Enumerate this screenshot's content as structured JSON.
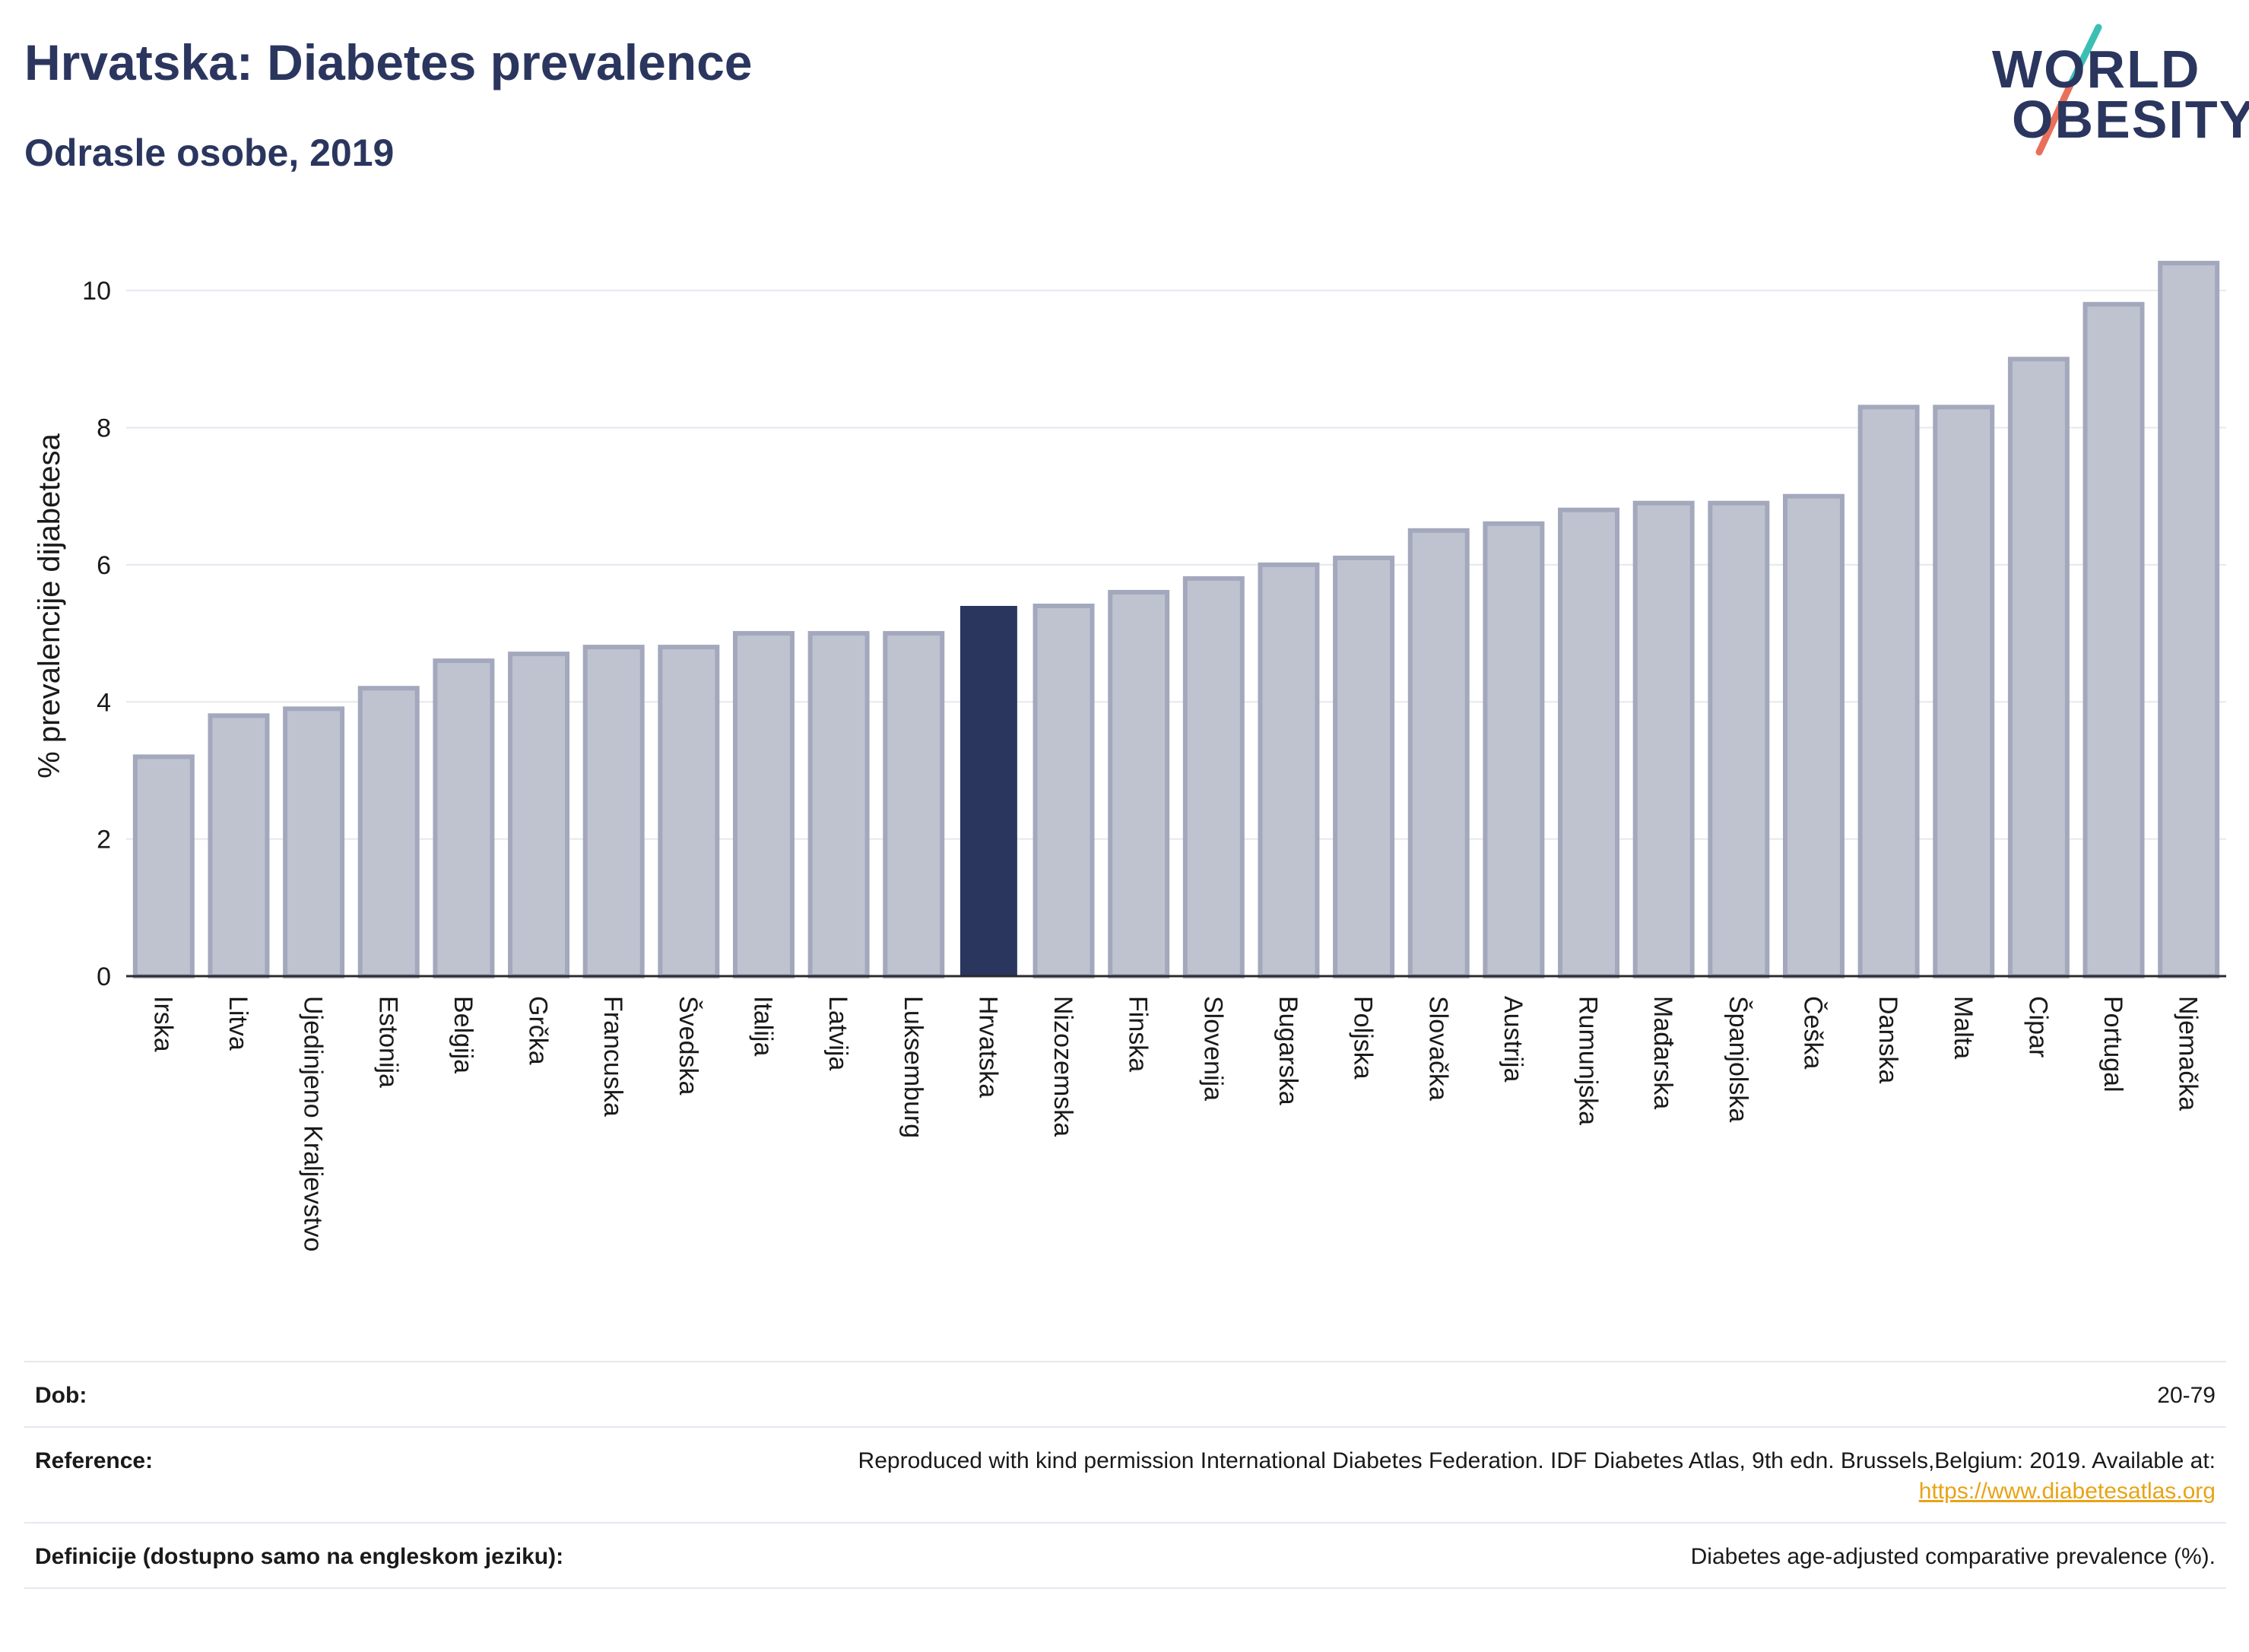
{
  "header": {
    "title": "Hrvatska: Diabetes prevalence",
    "subtitle": "Odrasle osobe, 2019"
  },
  "logo": {
    "line1": "WORLD",
    "line2": "OBESITY",
    "colors": {
      "text": "#2b365f",
      "slash_top": "#3bbfb4",
      "slash_bottom": "#e8705a"
    }
  },
  "chart_data": {
    "type": "bar",
    "title": "Hrvatska: Diabetes prevalence",
    "subtitle": "Odrasle osobe, 2019",
    "ylabel": "% prevalencije dijabetesa",
    "xlabel": "",
    "ylim": [
      0,
      10.8
    ],
    "yticks": [
      0,
      2,
      4,
      6,
      8,
      10
    ],
    "grid": true,
    "highlight": "Hrvatska",
    "colors": {
      "bar": "#bfc3d0",
      "bar_edge": "#a3a8bd",
      "highlight": "#2b365f",
      "grid": "#e6e8ef"
    },
    "categories": [
      "Irska",
      "Litva",
      "Ujedinjeno Kraljevstvo",
      "Estonija",
      "Belgija",
      "Grčka",
      "Francuska",
      "Švedska",
      "Italija",
      "Latvija",
      "Luksemburg",
      "Hrvatska",
      "Nizozemska",
      "Finska",
      "Slovenija",
      "Bugarska",
      "Poljska",
      "Slovačka",
      "Austrija",
      "Rumunjska",
      "Mađarska",
      "Španjolska",
      "Češka",
      "Danska",
      "Malta",
      "Cipar",
      "Portugal",
      "Njemačka"
    ],
    "values": [
      3.2,
      3.8,
      3.9,
      4.2,
      4.6,
      4.7,
      4.8,
      4.8,
      5.0,
      5.0,
      5.0,
      5.4,
      5.4,
      5.6,
      5.8,
      6.0,
      6.1,
      6.5,
      6.6,
      6.8,
      6.9,
      6.9,
      7.0,
      8.3,
      8.3,
      9.0,
      9.8,
      10.4
    ]
  },
  "info": {
    "rows": [
      {
        "key": "Dob:",
        "value": "20-79"
      },
      {
        "key": "Reference:",
        "value": "Reproduced with kind permission International Diabetes Federation. IDF Diabetes Atlas, 9th edn. Brussels,Belgium: 2019. Available at:",
        "link": "https://www.diabetesatlas.org"
      },
      {
        "key": "Definicije (dostupno samo na engleskom jeziku):",
        "value": "Diabetes age-adjusted comparative prevalence (%)."
      }
    ]
  }
}
